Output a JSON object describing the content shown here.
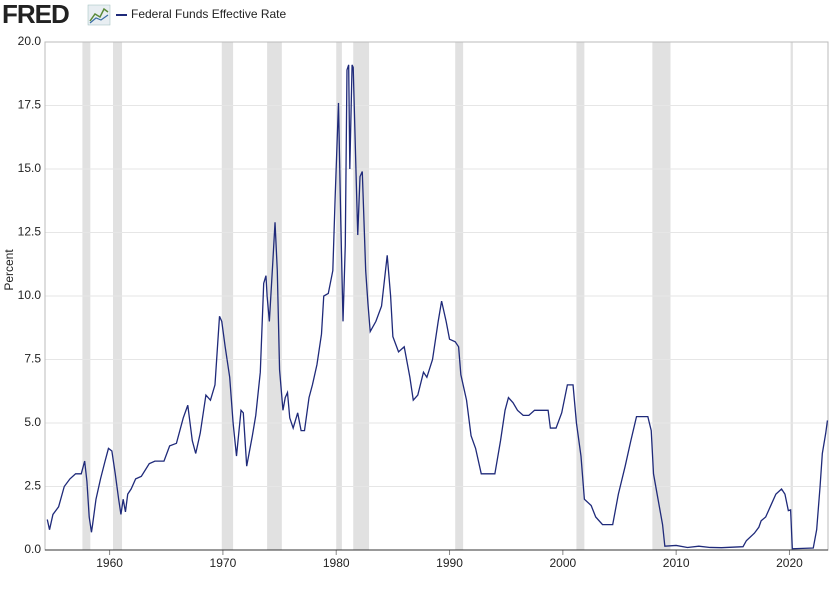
{
  "chart_data": {
    "type": "line",
    "logo": "FRED",
    "y_label": "Percent",
    "xlim": [
      1954.3,
      2023.4
    ],
    "xticks": [
      1960,
      1970,
      1980,
      1990,
      2000,
      2010,
      2020
    ],
    "ylim": [
      0,
      20
    ],
    "yticks": [
      {
        "value": 0,
        "label": "0.0"
      },
      {
        "value": 2.5,
        "label": "2.5"
      },
      {
        "value": 5,
        "label": "5.0"
      },
      {
        "value": 7.5,
        "label": "7.5"
      },
      {
        "value": 10,
        "label": "10.0"
      },
      {
        "value": 12.5,
        "label": "12.5"
      },
      {
        "value": 15,
        "label": "15.0"
      },
      {
        "value": 17.5,
        "label": "17.5"
      },
      {
        "value": 20,
        "label": "20.0"
      }
    ],
    "grid": true,
    "recession_color": "#e1e1e1",
    "recessions": [
      [
        1957.6,
        1958.3
      ],
      [
        1960.3,
        1961.1
      ],
      [
        1969.9,
        1970.9
      ],
      [
        1973.9,
        1975.2
      ],
      [
        1980.0,
        1980.5
      ],
      [
        1981.5,
        1982.9
      ],
      [
        1990.5,
        1991.2
      ],
      [
        2001.2,
        2001.9
      ],
      [
        2007.9,
        2009.5
      ],
      [
        2020.1,
        2020.3
      ]
    ],
    "x": [
      1954.5,
      1954.7,
      1955,
      1955.5,
      1956,
      1956.5,
      1957,
      1957.5,
      1957.8,
      1958,
      1958.2,
      1958.4,
      1958.5,
      1958.8,
      1959.2,
      1959.6,
      1959.9,
      1960.2,
      1960.5,
      1960.8,
      1961,
      1961.2,
      1961.4,
      1961.6,
      1961.9,
      1962.3,
      1962.8,
      1963.5,
      1964,
      1964.8,
      1965.3,
      1965.9,
      1966.5,
      1966.9,
      1967.3,
      1967.6,
      1968,
      1968.5,
      1968.9,
      1969.3,
      1969.7,
      1969.9,
      1970.2,
      1970.6,
      1970.9,
      1971.2,
      1971.6,
      1971.8,
      1972.1,
      1972.6,
      1972.9,
      1973.3,
      1973.6,
      1973.8,
      1973.9,
      1974.1,
      1974.4,
      1974.6,
      1974.8,
      1975,
      1975.3,
      1975.5,
      1975.7,
      1975.9,
      1976.2,
      1976.6,
      1976.9,
      1977.2,
      1977.6,
      1977.9,
      1978.3,
      1978.7,
      1978.9,
      1979.3,
      1979.7,
      1979.9,
      1980.2,
      1980.4,
      1980.6,
      1980.8,
      1980.95,
      1981.1,
      1981.2,
      1981.4,
      1981.5,
      1981.8,
      1981.9,
      1982.1,
      1982.3,
      1982.6,
      1982.8,
      1983,
      1983.5,
      1984,
      1984.5,
      1984.8,
      1985,
      1985.5,
      1986,
      1986.5,
      1986.8,
      1987.2,
      1987.7,
      1988,
      1988.5,
      1989,
      1989.3,
      1989.7,
      1990,
      1990.5,
      1990.8,
      1991,
      1991.5,
      1991.9,
      1992.3,
      1992.8,
      1993.5,
      1994,
      1994.5,
      1994.9,
      1995.2,
      1995.6,
      1996,
      1996.5,
      1997,
      1997.5,
      1998,
      1998.7,
      1998.9,
      1999.4,
      1999.9,
      2000.4,
      2000.9,
      2001.2,
      2001.6,
      2001.9,
      2002.5,
      2002.9,
      2003.5,
      2004.4,
      2004.9,
      2005.5,
      2006,
      2006.5,
      2007.5,
      2007.8,
      2008,
      2008.4,
      2008.8,
      2009,
      2010,
      2011,
      2012,
      2013,
      2014,
      2015.9,
      2016.2,
      2016.9,
      2017.3,
      2017.5,
      2017.9,
      2018.3,
      2018.8,
      2019.3,
      2019.6,
      2019.9,
      2020.1,
      2020.25,
      2022.1,
      2022.4,
      2022.7,
      2022.9,
      2023.2,
      2023.35
    ],
    "series": [
      {
        "name": "Federal Funds Effective Rate",
        "color": "#1f2a7a",
        "values": [
          1.2,
          0.8,
          1.4,
          1.7,
          2.5,
          2.8,
          3.0,
          3.0,
          3.5,
          2.7,
          1.3,
          0.7,
          1.0,
          2.0,
          2.8,
          3.5,
          4.0,
          3.9,
          3.0,
          2.0,
          1.4,
          2.0,
          1.5,
          2.2,
          2.4,
          2.8,
          2.9,
          3.4,
          3.5,
          3.5,
          4.1,
          4.2,
          5.2,
          5.7,
          4.3,
          3.8,
          4.6,
          6.1,
          5.9,
          6.5,
          9.2,
          9.0,
          8.0,
          6.8,
          5.0,
          3.7,
          5.5,
          5.4,
          3.3,
          4.5,
          5.3,
          7.0,
          10.5,
          10.8,
          10.0,
          9.0,
          11.3,
          12.9,
          11.0,
          7.1,
          5.5,
          6.0,
          6.2,
          5.2,
          4.8,
          5.4,
          4.7,
          4.7,
          6.0,
          6.5,
          7.3,
          8.5,
          10.0,
          10.1,
          11.0,
          13.8,
          17.6,
          13.0,
          9.0,
          12.0,
          18.9,
          19.1,
          15.0,
          19.1,
          19.0,
          14.0,
          12.4,
          14.7,
          14.9,
          11.0,
          9.7,
          8.6,
          9.0,
          9.6,
          11.6,
          10.0,
          8.4,
          7.8,
          8.0,
          6.8,
          5.9,
          6.1,
          7.0,
          6.8,
          7.5,
          9.0,
          9.8,
          9.0,
          8.3,
          8.2,
          8.0,
          6.9,
          5.9,
          4.5,
          4.0,
          3.0,
          3.0,
          3.0,
          4.3,
          5.5,
          6.0,
          5.8,
          5.5,
          5.3,
          5.3,
          5.5,
          5.5,
          5.5,
          4.8,
          4.8,
          5.4,
          6.5,
          6.5,
          5.0,
          3.7,
          2.0,
          1.75,
          1.3,
          1.0,
          1.0,
          2.2,
          3.3,
          4.3,
          5.25,
          5.25,
          4.7,
          3.0,
          2.0,
          1.0,
          0.15,
          0.18,
          0.1,
          0.15,
          0.1,
          0.09,
          0.13,
          0.37,
          0.66,
          0.9,
          1.15,
          1.3,
          1.7,
          2.2,
          2.4,
          2.2,
          1.55,
          1.58,
          0.05,
          0.08,
          0.8,
          2.5,
          3.8,
          4.6,
          5.1
        ]
      }
    ]
  }
}
